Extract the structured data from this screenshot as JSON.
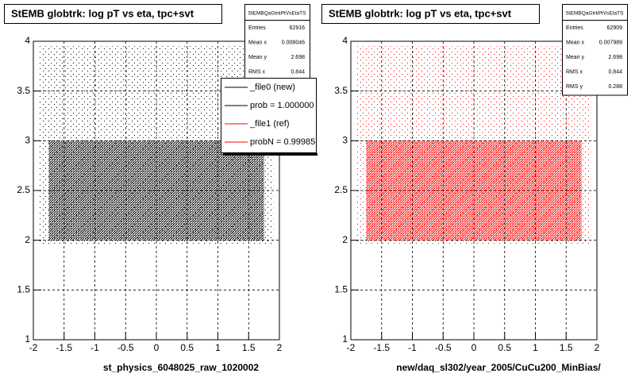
{
  "chart_data": [
    {
      "type": "scatter",
      "title": "StEMB globtrk: log pT vs eta, tpc+svt",
      "x_label": "st_physics_6048025_raw_1020002",
      "color": "#000000",
      "xlim": [
        -2,
        2
      ],
      "ylim": [
        1,
        4
      ],
      "xticks": [
        -2,
        -1.5,
        -1,
        -0.5,
        0,
        0.5,
        1,
        1.5,
        2
      ],
      "yticks": [
        1,
        1.5,
        2,
        2.5,
        3,
        3.5,
        4
      ],
      "grid": true,
      "point_cloud": {
        "core_x": [
          -1.75,
          1.75
        ],
        "core_y": [
          2.0,
          3.0
        ],
        "halo_x": [
          -1.9,
          1.9
        ],
        "halo_y": [
          1.95,
          3.95
        ]
      },
      "stats": {
        "title": "StEMBQaGtrkPtVsEtaTS",
        "entries": [
          {
            "label": "Entries",
            "value": 62916
          },
          {
            "label": "Mean x",
            "value": 0.008046
          },
          {
            "label": "Mean y",
            "value": 2.698
          },
          {
            "label": "RMS x",
            "value": 0.844
          }
        ]
      },
      "legend": [
        {
          "name": "_file0 (new)",
          "color": "#000000"
        },
        {
          "name": "prob = 1.000000",
          "color": "#000000"
        },
        {
          "name": "_file1 (ref)",
          "color": "#ff0000"
        },
        {
          "name": "probN = 0.99985",
          "color": "#ff0000"
        }
      ]
    },
    {
      "type": "scatter",
      "title": "StEMB globtrk: log pT vs eta, tpc+svt",
      "x_label": "new/daq_sl302/year_2005/CuCu200_MinBias/",
      "color": "#ff0000",
      "xlim": [
        -2,
        2
      ],
      "ylim": [
        1,
        4
      ],
      "xticks": [
        -2,
        -1.5,
        -1,
        -0.5,
        0,
        0.5,
        1,
        1.5,
        2
      ],
      "yticks": [
        1,
        1.5,
        2,
        2.5,
        3,
        3.5,
        4
      ],
      "grid": true,
      "point_cloud": {
        "core_x": [
          -1.75,
          1.75
        ],
        "core_y": [
          2.0,
          3.0
        ],
        "halo_x": [
          -1.9,
          1.9
        ],
        "halo_y": [
          1.95,
          3.95
        ]
      },
      "stats": {
        "title": "StEMBQaGtrkPtVsEtaTS",
        "entries": [
          {
            "label": "Entries",
            "value": 62909
          },
          {
            "label": "Mean x",
            "value": 0.007989
          },
          {
            "label": "Mean y",
            "value": 2.698
          },
          {
            "label": "RMS x",
            "value": 0.844
          },
          {
            "label": "RMS y",
            "value": 0.288
          }
        ]
      }
    }
  ]
}
